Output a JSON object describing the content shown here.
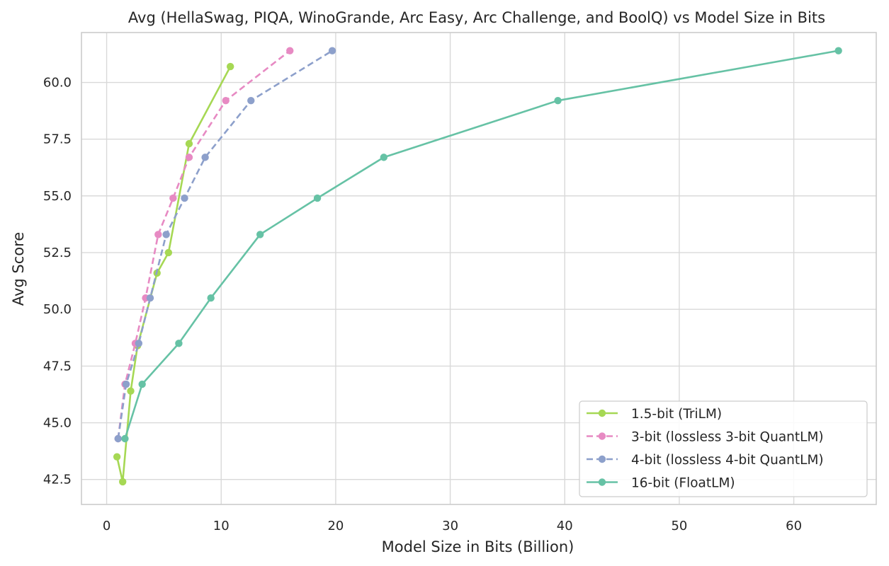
{
  "chart_data": {
    "type": "line",
    "title": "Avg (HellaSwag, PIQA, WinoGrande, Arc Easy, Arc Challenge, and BoolQ) vs Model Size in Bits",
    "xlabel": "Model Size in Bits (Billion)",
    "ylabel": "Avg Score",
    "xlim": [
      -2.2,
      67.2
    ],
    "ylim": [
      41.4,
      62.2
    ],
    "xticks": [
      0,
      10,
      20,
      30,
      40,
      50,
      60
    ],
    "yticks": [
      42.5,
      45.0,
      47.5,
      50.0,
      52.5,
      55.0,
      57.5,
      60.0
    ],
    "x_tick_labels": [
      "0",
      "10",
      "20",
      "30",
      "40",
      "50",
      "60"
    ],
    "y_tick_labels": [
      "42.5",
      "45.0",
      "47.5",
      "50.0",
      "52.5",
      "55.0",
      "57.5",
      "60.0"
    ],
    "grid": true,
    "legend_position": "bottom-right",
    "series": [
      {
        "name": "1.5-bit (TriLM)",
        "color": "#a6d854",
        "dash": "solid",
        "x": [
          0.9,
          1.4,
          2.1,
          2.7,
          4.4,
          5.4,
          7.2,
          10.8
        ],
        "y": [
          43.5,
          42.4,
          46.4,
          48.4,
          51.6,
          52.5,
          57.3,
          60.7
        ]
      },
      {
        "name": "3-bit (lossless 3-bit QuantLM)",
        "color": "#e78ac3",
        "dash": "dashed",
        "x": [
          1.0,
          1.6,
          2.5,
          3.4,
          4.5,
          5.8,
          7.2,
          10.4,
          16.0
        ],
        "y": [
          44.3,
          46.7,
          48.5,
          50.5,
          53.3,
          54.9,
          56.7,
          59.2,
          61.4
        ]
      },
      {
        "name": "4-bit (lossless 4-bit QuantLM)",
        "color": "#8da0cb",
        "dash": "dashed",
        "x": [
          1.0,
          1.7,
          2.8,
          3.8,
          5.2,
          6.8,
          8.6,
          12.6,
          19.7
        ],
        "y": [
          44.3,
          46.7,
          48.5,
          50.5,
          53.3,
          54.9,
          56.7,
          59.2,
          61.4
        ]
      },
      {
        "name": "16-bit (FloatLM)",
        "color": "#66c2a5",
        "dash": "solid",
        "x": [
          1.6,
          3.1,
          6.3,
          9.1,
          13.4,
          18.4,
          24.2,
          39.4,
          63.9
        ],
        "y": [
          44.3,
          46.7,
          48.5,
          50.5,
          53.3,
          54.9,
          56.7,
          59.2,
          61.4
        ]
      }
    ]
  }
}
